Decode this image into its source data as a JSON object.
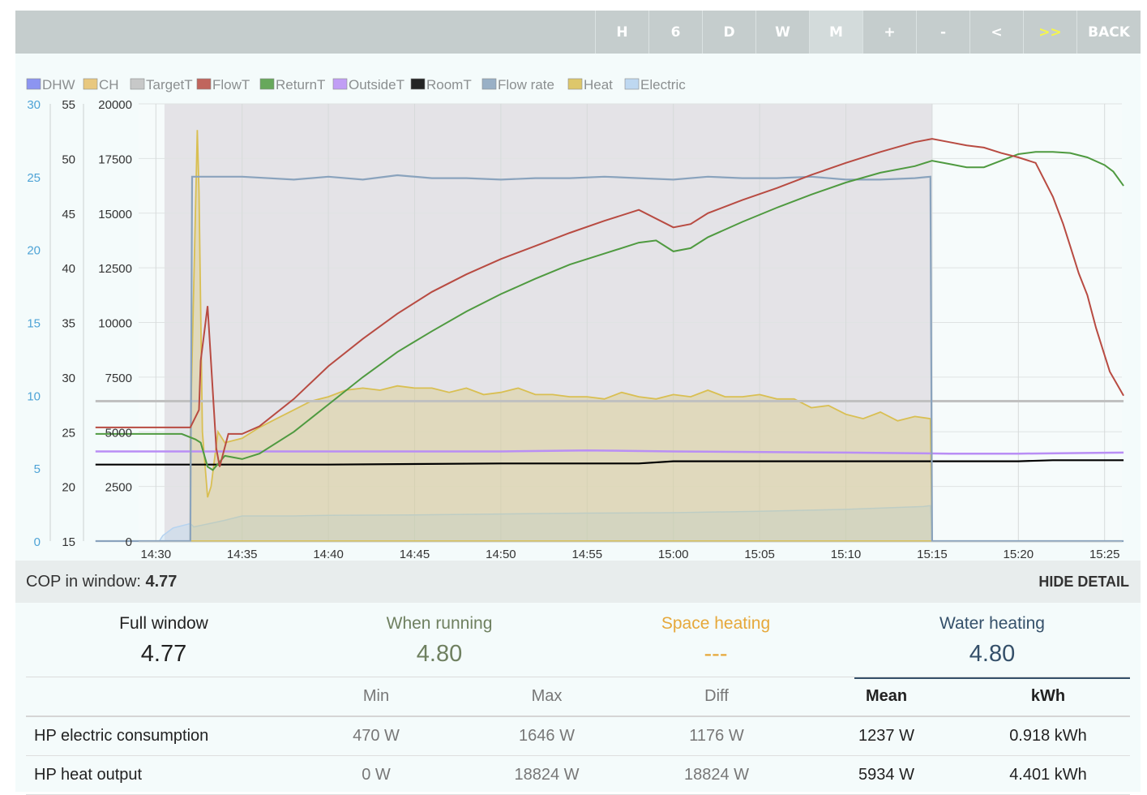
{
  "toolbar": {
    "buttons": [
      {
        "label": "H"
      },
      {
        "label": "6"
      },
      {
        "label": "D"
      },
      {
        "label": "W"
      },
      {
        "label": "M"
      },
      {
        "label": "+"
      },
      {
        "label": "-"
      },
      {
        "label": "<"
      },
      {
        "label": ">>"
      },
      {
        "label": "BACK"
      }
    ]
  },
  "chart_data": {
    "type": "line",
    "legend": [
      {
        "name": "DHW",
        "color": "#7b84f0"
      },
      {
        "name": "CH",
        "color": "#e6c06a"
      },
      {
        "name": "TargetT",
        "color": "#c0c0c0"
      },
      {
        "name": "FlowT",
        "color": "#b84b42"
      },
      {
        "name": "ReturnT",
        "color": "#4f9a40"
      },
      {
        "name": "OutsideT",
        "color": "#b98ef5"
      },
      {
        "name": "RoomT",
        "color": "#000000"
      },
      {
        "name": "Flow rate",
        "color": "#8aa3bd"
      },
      {
        "name": "Heat",
        "color": "#d9bf52"
      },
      {
        "name": "Electric",
        "color": "#b5d3f0"
      }
    ],
    "axes": {
      "flow_axis_ticks": [
        "0",
        "5",
        "10",
        "15",
        "20",
        "25",
        "30"
      ],
      "temp_axis_ticks": [
        "15",
        "20",
        "25",
        "30",
        "35",
        "40",
        "45",
        "50",
        "55"
      ],
      "power_axis_ticks": [
        "0",
        "2500",
        "5000",
        "7500",
        "10000",
        "12500",
        "15000",
        "17500",
        "20000"
      ],
      "x_ticks": [
        "14:30",
        "14:35",
        "14:40",
        "14:45",
        "14:50",
        "14:55",
        "15:00",
        "15:05",
        "15:10",
        "15:15",
        "15:20",
        "15:25"
      ],
      "x_range_min": [
        -1,
        56
      ],
      "temp_range": [
        15,
        55
      ],
      "power_range": [
        0,
        20000
      ],
      "flow_range": [
        0,
        30
      ]
    },
    "dhw_window_min": [
      0.5,
      45.0
    ],
    "series": [
      {
        "name": "FlowT",
        "unit": "C",
        "x": [
          -3.5,
          2.0,
          2.5,
          2.6,
          3.0,
          3.5,
          3.7,
          4.2,
          5.0,
          6,
          8,
          10,
          12,
          14,
          16,
          18,
          20,
          22,
          24,
          26,
          28,
          30,
          31,
          32,
          34,
          36,
          38,
          40,
          42,
          44,
          45,
          46,
          47,
          48,
          49,
          50,
          51,
          52,
          52.6,
          53,
          53.5,
          54,
          54.5,
          55,
          55.3,
          56.1
        ],
        "y": [
          25.4,
          25.4,
          27.0,
          31.5,
          36.5,
          23.5,
          21.8,
          24.8,
          24.8,
          25.5,
          28.0,
          31.0,
          33.5,
          35.8,
          37.8,
          39.4,
          40.8,
          42.0,
          43.2,
          44.3,
          45.3,
          43.7,
          44.0,
          45.0,
          46.2,
          47.3,
          48.5,
          49.6,
          50.6,
          51.5,
          51.8,
          51.5,
          51.2,
          51.0,
          50.5,
          50.1,
          49.6,
          46.5,
          44.0,
          42.0,
          39.5,
          37.5,
          34.5,
          32.0,
          30.5,
          28.3
        ]
      },
      {
        "name": "ReturnT",
        "unit": "C",
        "x": [
          -3.5,
          1.5,
          2.3,
          2.6,
          3.0,
          3.3,
          4.0,
          5.0,
          6,
          8,
          10,
          12,
          14,
          16,
          18,
          20,
          22,
          24,
          26,
          28,
          29,
          30,
          31,
          32,
          34,
          36,
          38,
          40,
          42,
          44,
          45,
          46,
          47,
          48,
          49,
          50,
          51,
          52,
          53,
          54,
          55,
          55.5,
          56.1
        ],
        "y": [
          24.8,
          24.8,
          24.3,
          24.0,
          21.8,
          21.5,
          22.8,
          22.5,
          23.0,
          25.0,
          27.5,
          30.0,
          32.3,
          34.2,
          36.0,
          37.6,
          39.0,
          40.3,
          41.3,
          42.3,
          42.5,
          41.5,
          41.8,
          42.8,
          44.2,
          45.5,
          46.7,
          47.8,
          48.7,
          49.3,
          49.8,
          49.5,
          49.2,
          49.2,
          49.8,
          50.4,
          50.6,
          50.6,
          50.5,
          50.1,
          49.4,
          48.8,
          47.5
        ]
      },
      {
        "name": "TargetT",
        "unit": "C",
        "x": [
          -3.5,
          56.1
        ],
        "y": [
          27.8,
          27.8
        ]
      },
      {
        "name": "OutsideT",
        "unit": "C",
        "x": [
          -3.5,
          10,
          20,
          25,
          30,
          40,
          46,
          50,
          56.1
        ],
        "y": [
          23.2,
          23.2,
          23.2,
          23.3,
          23.2,
          23.1,
          23.0,
          23.0,
          23.1
        ]
      },
      {
        "name": "RoomT",
        "unit": "C",
        "x": [
          -3.5,
          10,
          20,
          28,
          30,
          36,
          46,
          50,
          52,
          56.1
        ],
        "y": [
          22.0,
          22.0,
          22.1,
          22.1,
          22.3,
          22.3,
          22.3,
          22.3,
          22.4,
          22.4
        ]
      },
      {
        "name": "Heat",
        "unit": "W",
        "x": [
          2.0,
          2.4,
          2.5,
          2.7,
          3.0,
          3.2,
          3.6,
          4.0,
          4.5,
          5,
          6,
          7,
          8,
          9,
          10,
          11,
          12,
          13,
          14,
          15,
          16,
          17,
          18,
          19,
          20,
          21,
          22,
          23,
          24,
          25,
          26,
          27,
          28,
          29,
          30,
          31,
          32,
          33,
          34,
          35,
          36,
          37,
          38,
          39,
          40,
          41,
          42,
          43,
          44,
          44.9,
          45.0
        ],
        "y": [
          4800,
          18800,
          16000,
          5000,
          2000,
          2500,
          5000,
          4500,
          4600,
          4700,
          5200,
          5600,
          6000,
          6400,
          6600,
          6900,
          7000,
          6900,
          7100,
          7000,
          7000,
          6800,
          7000,
          6700,
          6800,
          7000,
          6700,
          6700,
          6600,
          6600,
          6500,
          6800,
          6600,
          6500,
          6700,
          6600,
          6900,
          6600,
          6600,
          6700,
          6500,
          6500,
          6100,
          6200,
          5800,
          5600,
          5900,
          5500,
          5700,
          5600,
          0
        ]
      },
      {
        "name": "Flow rate",
        "unit": "L/min",
        "x": [
          -3.5,
          2.0,
          2.1,
          5,
          8,
          10,
          12,
          14,
          16,
          18,
          20,
          22,
          24,
          26,
          28,
          30,
          32,
          34,
          36,
          38,
          40,
          42,
          44,
          44.9,
          45.0,
          56.1
        ],
        "y": [
          0,
          0,
          25.0,
          25.0,
          24.8,
          25.0,
          24.8,
          25.1,
          24.9,
          24.9,
          24.8,
          24.9,
          24.9,
          25.0,
          24.9,
          24.8,
          25.0,
          24.9,
          24.9,
          25.0,
          24.8,
          24.8,
          24.9,
          25.0,
          0,
          0
        ]
      },
      {
        "name": "Electric",
        "unit": "W",
        "x": [
          -3.5,
          0.2,
          0.4,
          1.0,
          2.0,
          2.2,
          4,
          5,
          8,
          10,
          15,
          20,
          25,
          30,
          35,
          40,
          44.5,
          44.9,
          45.0,
          56.1
        ],
        "y": [
          0,
          0,
          250,
          600,
          800,
          650,
          950,
          1150,
          1150,
          1180,
          1200,
          1240,
          1280,
          1300,
          1360,
          1450,
          1580,
          1620,
          0,
          0
        ]
      }
    ]
  },
  "cop": {
    "label": "COP in window:",
    "value": "4.77",
    "hide_detail": "HIDE DETAIL",
    "columns": [
      {
        "title": "Full window",
        "value": "4.77",
        "color": "#222222"
      },
      {
        "title": "When running",
        "value": "4.80",
        "color": "#6f8060"
      },
      {
        "title": "Space heating",
        "value": "---",
        "color": "#e6a83a"
      },
      {
        "title": "Water heating",
        "value": "4.80",
        "color": "#35506a"
      }
    ]
  },
  "stats": {
    "headers": [
      "",
      "Min",
      "Max",
      "Diff",
      "Mean",
      "kWh"
    ],
    "rows": [
      {
        "name": "HP electric consumption",
        "min": "470 W",
        "max": "1646 W",
        "diff": "1176 W",
        "mean": "1237 W",
        "kwh": "0.918 kWh"
      },
      {
        "name": "HP heat output",
        "min": "0 W",
        "max": "18824 W",
        "diff": "18824 W",
        "mean": "5934 W",
        "kwh": "4.401 kWh"
      }
    ]
  }
}
